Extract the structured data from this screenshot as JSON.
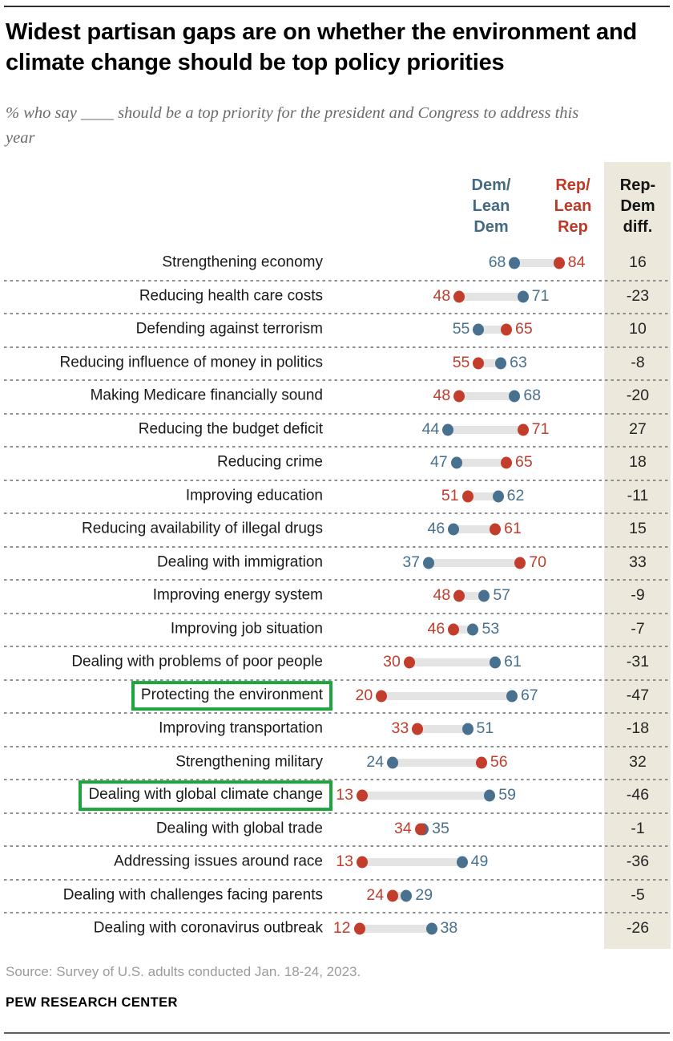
{
  "title": "Widest partisan gaps are on whether the environment and climate change should be top policy priorities",
  "subtitle": "% who say ____ should be a top priority for the president and Congress to address this year",
  "columns": {
    "dem_header": "Dem/\nLean\nDem",
    "rep_header": "Rep/\nLean\nRep",
    "diff_header": "Rep-\nDem\ndiff."
  },
  "chart_data": {
    "type": "dumbbell",
    "series_names": [
      "Dem/Lean Dem",
      "Rep/Lean Rep"
    ],
    "xlim": [
      0,
      100
    ],
    "diff_definition": "Rep minus Dem",
    "rows": [
      {
        "label": "Strengthening economy",
        "dem": 68,
        "rep": 84,
        "diff": 16,
        "highlighted": false
      },
      {
        "label": "Reducing health care costs",
        "dem": 71,
        "rep": 48,
        "diff": -23,
        "highlighted": false
      },
      {
        "label": "Defending against terrorism",
        "dem": 55,
        "rep": 65,
        "diff": 10,
        "highlighted": false
      },
      {
        "label": "Reducing influence of money in politics",
        "dem": 63,
        "rep": 55,
        "diff": -8,
        "highlighted": false
      },
      {
        "label": "Making Medicare financially sound",
        "dem": 68,
        "rep": 48,
        "diff": -20,
        "highlighted": false
      },
      {
        "label": "Reducing the budget deficit",
        "dem": 44,
        "rep": 71,
        "diff": 27,
        "highlighted": false
      },
      {
        "label": "Reducing crime",
        "dem": 47,
        "rep": 65,
        "diff": 18,
        "highlighted": false
      },
      {
        "label": "Improving education",
        "dem": 62,
        "rep": 51,
        "diff": -11,
        "highlighted": false
      },
      {
        "label": "Reducing availability of illegal drugs",
        "dem": 46,
        "rep": 61,
        "diff": 15,
        "highlighted": false
      },
      {
        "label": "Dealing with immigration",
        "dem": 37,
        "rep": 70,
        "diff": 33,
        "highlighted": false
      },
      {
        "label": "Improving energy system",
        "dem": 57,
        "rep": 48,
        "diff": -9,
        "highlighted": false
      },
      {
        "label": "Improving job situation",
        "dem": 53,
        "rep": 46,
        "diff": -7,
        "highlighted": false
      },
      {
        "label": "Dealing with problems of poor people",
        "dem": 61,
        "rep": 30,
        "diff": -31,
        "highlighted": false
      },
      {
        "label": "Protecting the environment",
        "dem": 67,
        "rep": 20,
        "diff": -47,
        "highlighted": true
      },
      {
        "label": "Improving transportation",
        "dem": 51,
        "rep": 33,
        "diff": -18,
        "highlighted": false
      },
      {
        "label": "Strengthening military",
        "dem": 24,
        "rep": 56,
        "diff": 32,
        "highlighted": false
      },
      {
        "label": "Dealing with global climate change",
        "dem": 59,
        "rep": 13,
        "diff": -46,
        "highlighted": true
      },
      {
        "label": "Dealing with global trade",
        "dem": 35,
        "rep": 34,
        "diff": -1,
        "highlighted": false
      },
      {
        "label": "Addressing issues around race",
        "dem": 49,
        "rep": 13,
        "diff": -36,
        "highlighted": false
      },
      {
        "label": "Dealing with challenges facing parents",
        "dem": 29,
        "rep": 24,
        "diff": -5,
        "highlighted": false
      },
      {
        "label": "Dealing with coronavirus outbreak",
        "dem": 38,
        "rep": 12,
        "diff": -26,
        "highlighted": false
      }
    ],
    "colors": {
      "dem": "#48708f",
      "rep": "#c23d2b",
      "connector": "#e4e4e4",
      "highlight_box": "#1da43c",
      "diff_panel": "#ece9dc"
    }
  },
  "source": "Source: Survey of U.S. adults conducted Jan. 18-24, 2023.",
  "footer": "PEW RESEARCH CENTER"
}
